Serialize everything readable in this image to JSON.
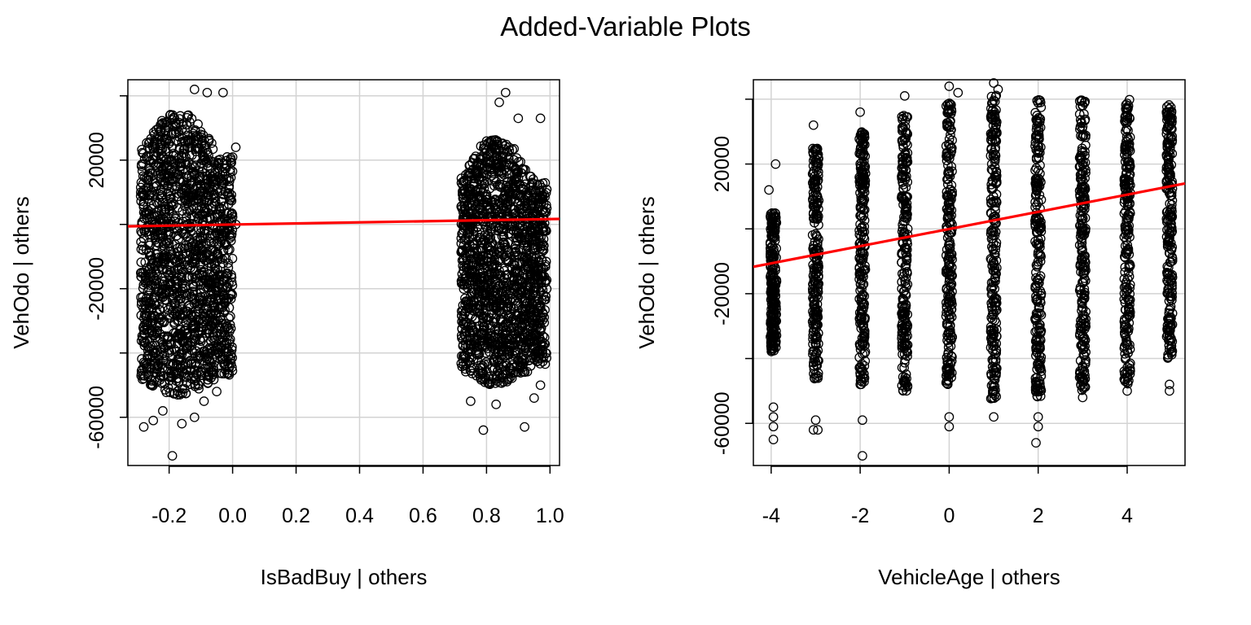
{
  "figure": {
    "title": "Added-Variable Plots"
  },
  "chart_data": [
    {
      "type": "scatter",
      "xlabel": "IsBadBuy | others",
      "ylabel": "VehOdo  | others",
      "xlim": [
        -0.33,
        1.03
      ],
      "ylim": [
        -75000,
        45000
      ],
      "x_ticks": [
        -0.2,
        0.0,
        0.2,
        0.4,
        0.6,
        0.8,
        1.0
      ],
      "x_tick_labels": [
        "-0.2",
        "0.0",
        "0.2",
        "0.4",
        "0.6",
        "0.8",
        "1.0"
      ],
      "y_ticks": [
        -60000,
        -40000,
        -20000,
        0,
        20000,
        40000
      ],
      "y_tick_labels": [
        "-60000",
        "",
        "-20000",
        "",
        "20000",
        ""
      ],
      "grid": true,
      "clusters": [
        {
          "x_range": [
            -0.29,
            0.0
          ],
          "y_range": [
            -53000,
            35000
          ]
        },
        {
          "x_range": [
            0.72,
            0.99
          ],
          "y_range": [
            -50000,
            27000
          ]
        }
      ],
      "outliers": [
        [
          -0.28,
          -63000
        ],
        [
          -0.25,
          -61000
        ],
        [
          -0.22,
          -58000
        ],
        [
          -0.19,
          -72000
        ],
        [
          -0.16,
          -62000
        ],
        [
          -0.12,
          -60000
        ],
        [
          -0.09,
          -55000
        ],
        [
          -0.05,
          -52000
        ],
        [
          0.01,
          24000
        ],
        [
          0.01,
          0
        ],
        [
          -0.12,
          42000
        ],
        [
          -0.08,
          41000
        ],
        [
          -0.03,
          41000
        ],
        [
          0.79,
          -64000
        ],
        [
          0.92,
          -63000
        ],
        [
          0.75,
          -55000
        ],
        [
          0.83,
          -56000
        ],
        [
          0.95,
          -54000
        ],
        [
          0.97,
          -50000
        ],
        [
          0.86,
          41000
        ],
        [
          0.84,
          38000
        ],
        [
          0.9,
          33000
        ],
        [
          0.97,
          33000
        ]
      ],
      "fit_line": {
        "x": [
          -0.33,
          1.03
        ],
        "y": [
          -600,
          1700
        ],
        "color": "#ff0000"
      }
    },
    {
      "type": "scatter",
      "xlabel": "VehicleAge | others",
      "ylabel": "VehOdo  | others",
      "xlim": [
        -4.4,
        5.3
      ],
      "ylim": [
        -73000,
        46000
      ],
      "x_ticks": [
        -4,
        -2,
        0,
        2,
        4
      ],
      "x_tick_labels": [
        "-4",
        "-2",
        "0",
        "2",
        "4"
      ],
      "y_ticks": [
        -60000,
        -40000,
        -20000,
        0,
        20000,
        40000
      ],
      "y_tick_labels": [
        "-60000",
        "",
        "-20000",
        "",
        "20000",
        ""
      ],
      "grid": true,
      "columns": [
        {
          "x": -3.95,
          "y_range": [
            -38000,
            5000
          ]
        },
        {
          "x": -3.0,
          "y_range": [
            -47000,
            25000
          ]
        },
        {
          "x": -1.95,
          "y_range": [
            -48000,
            30000
          ]
        },
        {
          "x": -1.0,
          "y_range": [
            -50000,
            35000
          ]
        },
        {
          "x": 0.0,
          "y_range": [
            -48000,
            39000
          ]
        },
        {
          "x": 1.0,
          "y_range": [
            -53000,
            42000
          ]
        },
        {
          "x": 2.0,
          "y_range": [
            -53000,
            40000
          ]
        },
        {
          "x": 3.0,
          "y_range": [
            -50000,
            40000
          ]
        },
        {
          "x": 4.0,
          "y_range": [
            -48000,
            40000
          ]
        },
        {
          "x": 4.95,
          "y_range": [
            -40000,
            40000
          ]
        }
      ],
      "outliers": [
        [
          -4.05,
          12000
        ],
        [
          -3.9,
          20000
        ],
        [
          -3.95,
          -55000
        ],
        [
          -3.95,
          -58000
        ],
        [
          -3.95,
          -61000
        ],
        [
          -3.95,
          -65000
        ],
        [
          -3.05,
          32000
        ],
        [
          -3.0,
          -59000
        ],
        [
          -2.95,
          -62000
        ],
        [
          -3.05,
          -62000
        ],
        [
          -2.0,
          36000
        ],
        [
          -1.95,
          -59000
        ],
        [
          -1.95,
          -70000
        ],
        [
          -1.0,
          41000
        ],
        [
          0.0,
          -58000
        ],
        [
          0.0,
          -61000
        ],
        [
          0.0,
          44000
        ],
        [
          0.2,
          42000
        ],
        [
          1.0,
          45000
        ],
        [
          1.1,
          43000
        ],
        [
          1.0,
          -58000
        ],
        [
          2.0,
          -58000
        ],
        [
          2.0,
          -61000
        ],
        [
          1.95,
          -66000
        ],
        [
          3.0,
          -52000
        ],
        [
          4.0,
          -50000
        ],
        [
          4.95,
          -50000
        ],
        [
          4.95,
          -48000
        ]
      ],
      "fit_line": {
        "x": [
          -4.4,
          5.3
        ],
        "y": [
          -11700,
          14000
        ],
        "color": "#ff0000"
      }
    }
  ]
}
